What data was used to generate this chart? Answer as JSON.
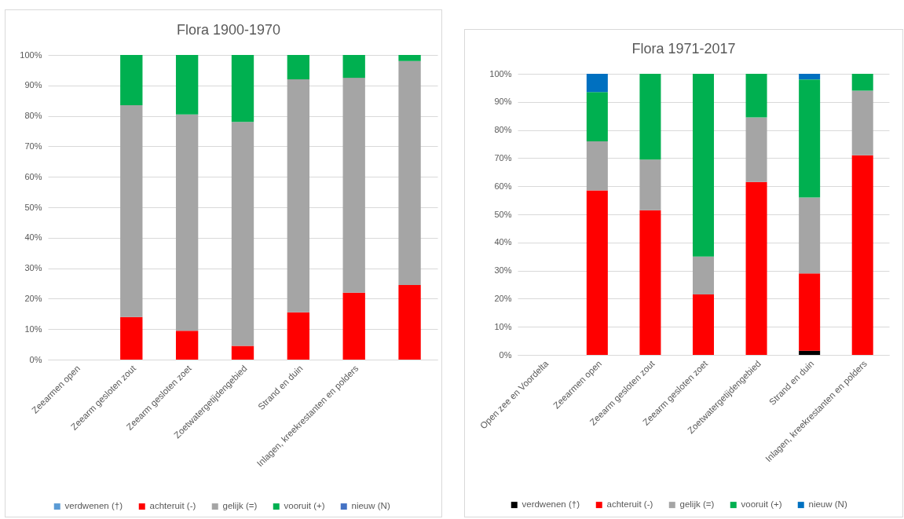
{
  "chart_data": [
    {
      "type": "bar",
      "title": "Flora 1900-1970",
      "stacked": true,
      "categories": [
        "Zeearmen open",
        "Zeearm gesloten zout",
        "Zeearm gesloten zoet",
        "Zoetwatergetijdengebied",
        "Strand en duin",
        "Inlagen, kreekrestanten en polders",
        null
      ],
      "series": [
        {
          "name": "verdwenen (†)",
          "color": "#5b9bd5",
          "values": [
            null,
            null,
            null,
            null,
            null,
            null,
            null
          ]
        },
        {
          "name": "achteruit (-)",
          "color": "#ff0000",
          "values": [
            null,
            14,
            9.5,
            4.5,
            15.5,
            22,
            24.5
          ]
        },
        {
          "name": "gelijk (=)",
          "color": "#a5a5a5",
          "values": [
            null,
            69.5,
            71,
            73.5,
            76.5,
            70.5,
            73.5
          ]
        },
        {
          "name": "vooruit (+)",
          "color": "#00b050",
          "values": [
            null,
            16.5,
            19.5,
            22,
            8,
            7.5,
            2
          ]
        },
        {
          "name": "nieuw (N)",
          "color": "#4472c4",
          "values": [
            null,
            null,
            null,
            null,
            null,
            null,
            null
          ]
        }
      ],
      "ylim": [
        0,
        100
      ],
      "yticks": [
        {
          "value": 0,
          "label": "0%"
        },
        {
          "value": 10,
          "label": "10%"
        },
        {
          "value": 20,
          "label": "20%"
        },
        {
          "value": 30,
          "label": "30%"
        },
        {
          "value": 40,
          "label": "40%"
        },
        {
          "value": 50,
          "label": "50%"
        },
        {
          "value": 60,
          "label": "60%"
        },
        {
          "value": 70,
          "label": "70%"
        },
        {
          "value": 80,
          "label": "80%"
        },
        {
          "value": 90,
          "label": "90%"
        },
        {
          "value": 100,
          "label": "100%"
        }
      ],
      "grid": "y",
      "legend": "bottom"
    },
    {
      "type": "bar",
      "title": "Flora 1971-2017",
      "stacked": true,
      "categories": [
        "Open zee en Voordelta",
        "Zeearmen open",
        "Zeearm gesloten zout",
        "Zeearm gesloten zoet",
        "Zoetwatergetijdengebied",
        "Strand en duin",
        "Inlagen, kreekrestanten en polders"
      ],
      "series": [
        {
          "name": "verdwenen (†)",
          "color": "#000000",
          "values": [
            null,
            null,
            null,
            null,
            null,
            1.5,
            null
          ]
        },
        {
          "name": "achteruit (-)",
          "color": "#ff0000",
          "values": [
            null,
            58.5,
            51.5,
            21.5,
            61.5,
            27.5,
            71
          ]
        },
        {
          "name": "gelijk (=)",
          "color": "#a5a5a5",
          "values": [
            null,
            17.5,
            18,
            13.5,
            23,
            27,
            23
          ]
        },
        {
          "name": "vooruit (+)",
          "color": "#00b050",
          "values": [
            null,
            17.5,
            30.5,
            65,
            15.5,
            42,
            6
          ]
        },
        {
          "name": "nieuw (N)",
          "color": "#0070c0",
          "values": [
            null,
            6.5,
            null,
            null,
            null,
            2,
            null
          ]
        }
      ],
      "ylim": [
        0,
        100
      ],
      "yticks": [
        {
          "value": 0,
          "label": "0%"
        },
        {
          "value": 10,
          "label": "10%"
        },
        {
          "value": 20,
          "label": "20%"
        },
        {
          "value": 30,
          "label": "30%"
        },
        {
          "value": 40,
          "label": "40%"
        },
        {
          "value": 50,
          "label": "50%"
        },
        {
          "value": 60,
          "label": "60%"
        },
        {
          "value": 70,
          "label": "70%"
        },
        {
          "value": 80,
          "label": "80%"
        },
        {
          "value": 90,
          "label": "90%"
        },
        {
          "value": 100,
          "label": "100%"
        }
      ],
      "grid": "y",
      "legend": "bottom"
    }
  ]
}
